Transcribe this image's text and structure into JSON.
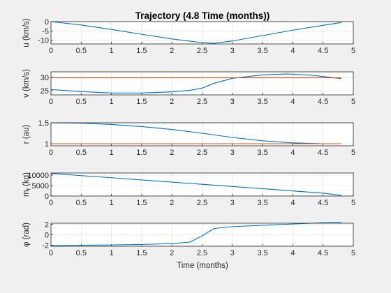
{
  "chart_data": {
    "type": "line",
    "title": "Trajectory (4.8 Time (months))",
    "xlabel": "Time (months)",
    "xlim": [
      0,
      5
    ],
    "xticks": [
      "0",
      "0.5",
      "1",
      "1.5",
      "2",
      "2.5",
      "3",
      "3.5",
      "4",
      "4.5",
      "5"
    ],
    "colors": {
      "primary": "#0072bd",
      "reference": "#d95319"
    },
    "grid": true,
    "subplots": [
      {
        "id": "u",
        "ylabel": "u (km/s)",
        "ylim": [
          -12,
          0
        ],
        "yticks": [
          0,
          -5,
          -10
        ],
        "ytick_labels": [
          "0",
          "-5",
          "-10"
        ],
        "series": [
          {
            "x": [
              0,
              0.5,
              1,
              1.5,
              2,
              2.5,
              2.7,
              3,
              3.5,
              4,
              4.5,
              4.8
            ],
            "y": [
              0,
              -1.8,
              -4.2,
              -6.8,
              -9.3,
              -11.3,
              -11.7,
              -10.4,
              -7.5,
              -4.6,
              -2.0,
              -0.5
            ]
          }
        ]
      },
      {
        "id": "v",
        "ylabel": "v (km/s)",
        "ylim": [
          23.5,
          32
        ],
        "yticks": [
          25,
          30
        ],
        "ytick_labels": [
          "25",
          "30"
        ],
        "series": [
          {
            "x": [
              0,
              0.5,
              1,
              1.5,
              2,
              2.3,
              2.5,
              2.7,
              3,
              3.5,
              3.9,
              4.3,
              4.8
            ],
            "y": [
              25.5,
              24.7,
              24.2,
              24.2,
              24.6,
              25.2,
              26.0,
              27.8,
              29.6,
              30.9,
              31.2,
              30.8,
              29.5
            ]
          },
          {
            "role": "reference",
            "x": [
              0,
              4.8
            ],
            "y": [
              29.8,
              29.8
            ]
          }
        ]
      },
      {
        "id": "r",
        "ylabel": "r (au)",
        "ylim": [
          0.95,
          1.5
        ],
        "yticks": [
          1,
          1.5
        ],
        "ytick_labels": [
          "1",
          "1.5"
        ],
        "series": [
          {
            "x": [
              0,
              0.5,
              1,
              1.5,
              2,
              2.5,
              3,
              3.5,
              4,
              4.5,
              4.8
            ],
            "y": [
              1.5,
              1.49,
              1.46,
              1.41,
              1.34,
              1.25,
              1.15,
              1.07,
              1.02,
              1.0,
              1.0
            ]
          },
          {
            "role": "reference",
            "x": [
              0,
              4.8
            ],
            "y": [
              1.0,
              1.0
            ]
          }
        ]
      },
      {
        "id": "mf",
        "ylabel": "m_f (kg)",
        "ylim": [
          0,
          11000
        ],
        "yticks": [
          0,
          5000,
          10000
        ],
        "ytick_labels": [
          "0",
          "5000",
          "10000"
        ],
        "series": [
          {
            "x": [
              0,
              0.5,
              1,
              1.5,
              2,
              2.5,
              3,
              3.5,
              4,
              4.5,
              4.8
            ],
            "y": [
              10800,
              9750,
              8750,
              7700,
              6650,
              5600,
              4550,
              3500,
              2450,
              1400,
              300
            ]
          }
        ]
      },
      {
        "id": "phi",
        "ylabel": "φ (rad)",
        "ylim": [
          -2.2,
          2.2
        ],
        "yticks": [
          2,
          0,
          -2
        ],
        "ytick_labels": [
          "2",
          "0",
          "-2"
        ],
        "series": [
          {
            "x": [
              0,
              0.5,
              1,
              1.5,
              2,
              2.3,
              2.5,
              2.7,
              3,
              3.5,
              4,
              4.5,
              4.8
            ],
            "y": [
              -2.1,
              -2.0,
              -1.95,
              -1.85,
              -1.7,
              -1.4,
              -0.2,
              1.2,
              1.55,
              1.8,
              2.05,
              2.3,
              2.35
            ]
          }
        ]
      }
    ]
  }
}
